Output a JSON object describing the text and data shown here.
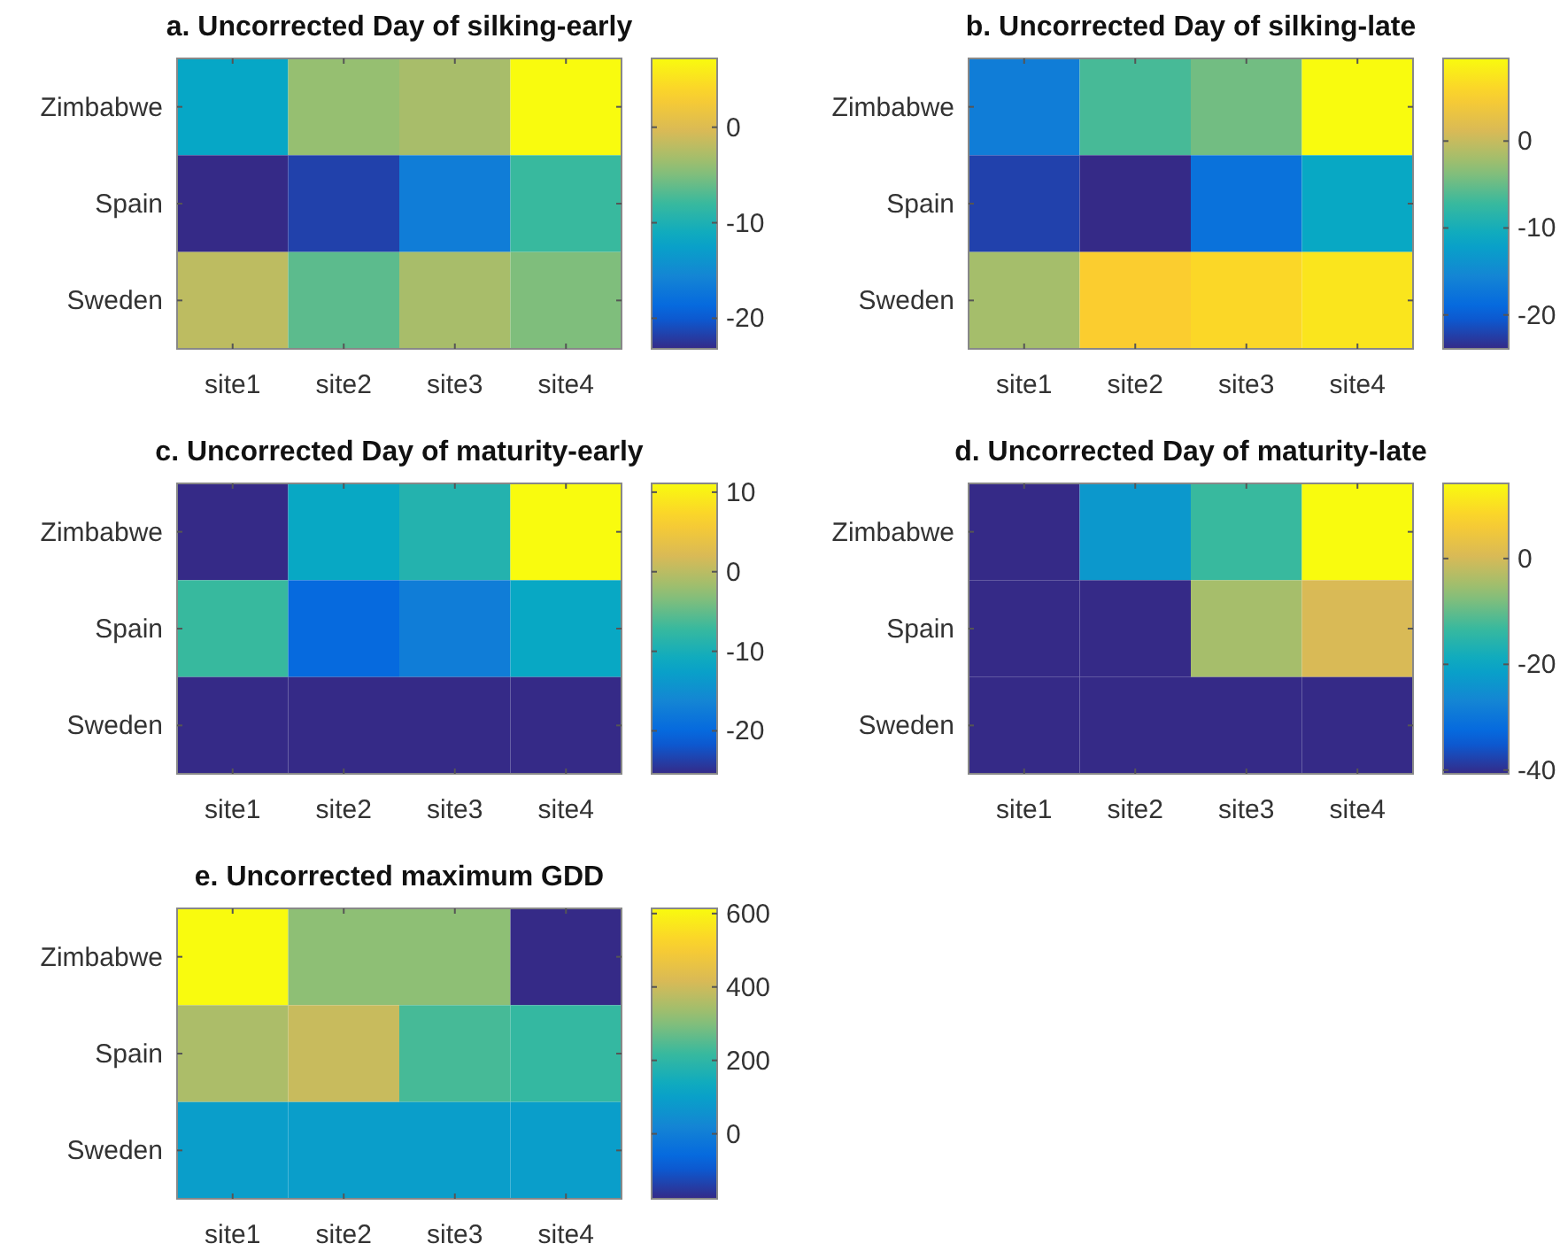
{
  "chart_data": [
    {
      "type": "heatmap",
      "title": "a.  Uncorrected Day of silking-early",
      "categories": [
        "site1",
        "site2",
        "site3",
        "site4"
      ],
      "y_categories": [
        "Zimbabwe",
        "Spain",
        "Sweden"
      ],
      "cells": [
        [
          -11.8,
          -4,
          -3,
          7.2
        ],
        [
          -23.2,
          -21.7,
          -16.5,
          -8
        ],
        [
          -1.9,
          -6.5,
          -3,
          -5
        ]
      ],
      "clim": [
        -23.2,
        7.2
      ],
      "cticks": [
        -20,
        -10,
        0
      ]
    },
    {
      "type": "heatmap",
      "title": "b.  Uncorrected Day of silking-late",
      "categories": [
        "site1",
        "site2",
        "site3",
        "site4"
      ],
      "y_categories": [
        "Zimbabwe",
        "Spain",
        "Sweden"
      ],
      "cells": [
        [
          -16.5,
          -6.5,
          -4.5,
          9.5
        ],
        [
          -22.2,
          -23.9,
          -17.9,
          -11.2
        ],
        [
          -1.9,
          5.2,
          6.2,
          7.5
        ]
      ],
      "clim": [
        -23.9,
        9.5
      ],
      "cticks": [
        -20,
        -10,
        0
      ]
    },
    {
      "type": "heatmap",
      "title": "c.  Uncorrected Day of maturity-early",
      "categories": [
        "site1",
        "site2",
        "site3",
        "site4"
      ],
      "y_categories": [
        "Zimbabwe",
        "Spain",
        "Sweden"
      ],
      "cells": [
        [
          -25.4,
          -11.5,
          -9,
          11.1
        ],
        [
          -7.2,
          -19.9,
          -17.4,
          -11.5
        ],
        [
          -25.4,
          -25.4,
          -25.4,
          -25.4
        ]
      ],
      "clim": [
        -25.4,
        11.1
      ],
      "cticks": [
        -20,
        -10,
        0,
        10
      ]
    },
    {
      "type": "heatmap",
      "title": "d.  Uncorrected Day of maturity-late",
      "categories": [
        "site1",
        "site2",
        "site3",
        "site4"
      ],
      "y_categories": [
        "Zimbabwe",
        "Spain",
        "Sweden"
      ],
      "cells": [
        [
          -40.7,
          -23.1,
          -13.3,
          14.2
        ],
        [
          -40.7,
          -40.7,
          -4.5,
          0.5
        ],
        [
          -40.7,
          -40.7,
          -40.7,
          -40.7
        ]
      ],
      "clim": [
        -40.7,
        14.2
      ],
      "cticks": [
        -40,
        -20,
        0
      ]
    },
    {
      "type": "heatmap",
      "title": "e.  Uncorrected maximum GDD",
      "categories": [
        "site1",
        "site2",
        "site3",
        "site4"
      ],
      "y_categories": [
        "Zimbabwe",
        "Spain",
        "Sweden"
      ],
      "cells": [
        [
          614,
          313,
          313,
          -177
        ],
        [
          353,
          393,
          234,
          211
        ],
        [
          92,
          92,
          92,
          92
        ]
      ],
      "clim": [
        -177,
        614
      ],
      "cticks": [
        0,
        200,
        400,
        600
      ]
    }
  ]
}
